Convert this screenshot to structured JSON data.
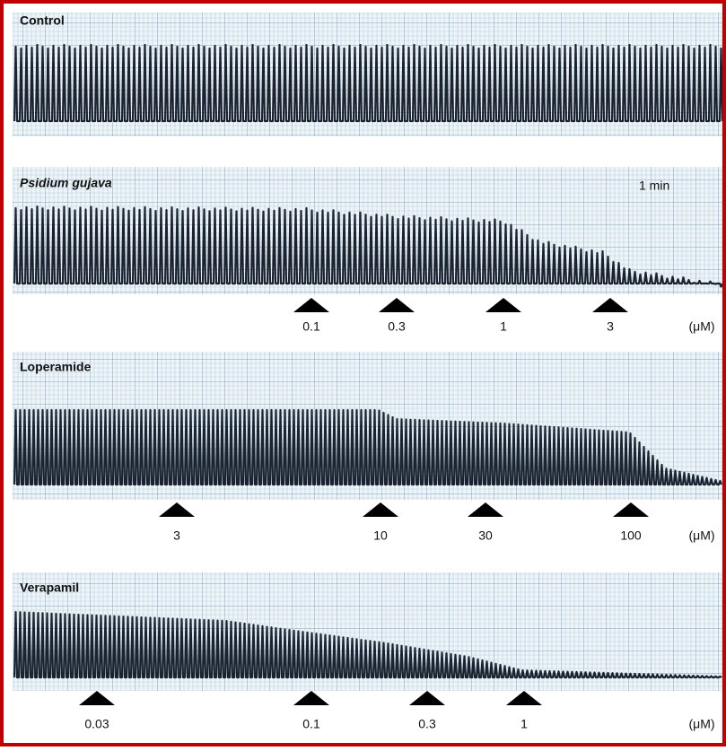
{
  "panels": [
    {
      "label": "Control"
    },
    {
      "label": "Psidium gujava",
      "scale_bar": "1 min",
      "doses": [
        "0.1",
        "0.3",
        "1",
        "3"
      ],
      "unit": "(μM)"
    },
    {
      "label": "Loperamide",
      "doses": [
        "3",
        "10",
        "30",
        "100"
      ],
      "unit": "(μM)"
    },
    {
      "label": "Verapamil",
      "doses": [
        "0.03",
        "0.1",
        "0.3",
        "1"
      ],
      "unit": "(μM)"
    }
  ]
}
